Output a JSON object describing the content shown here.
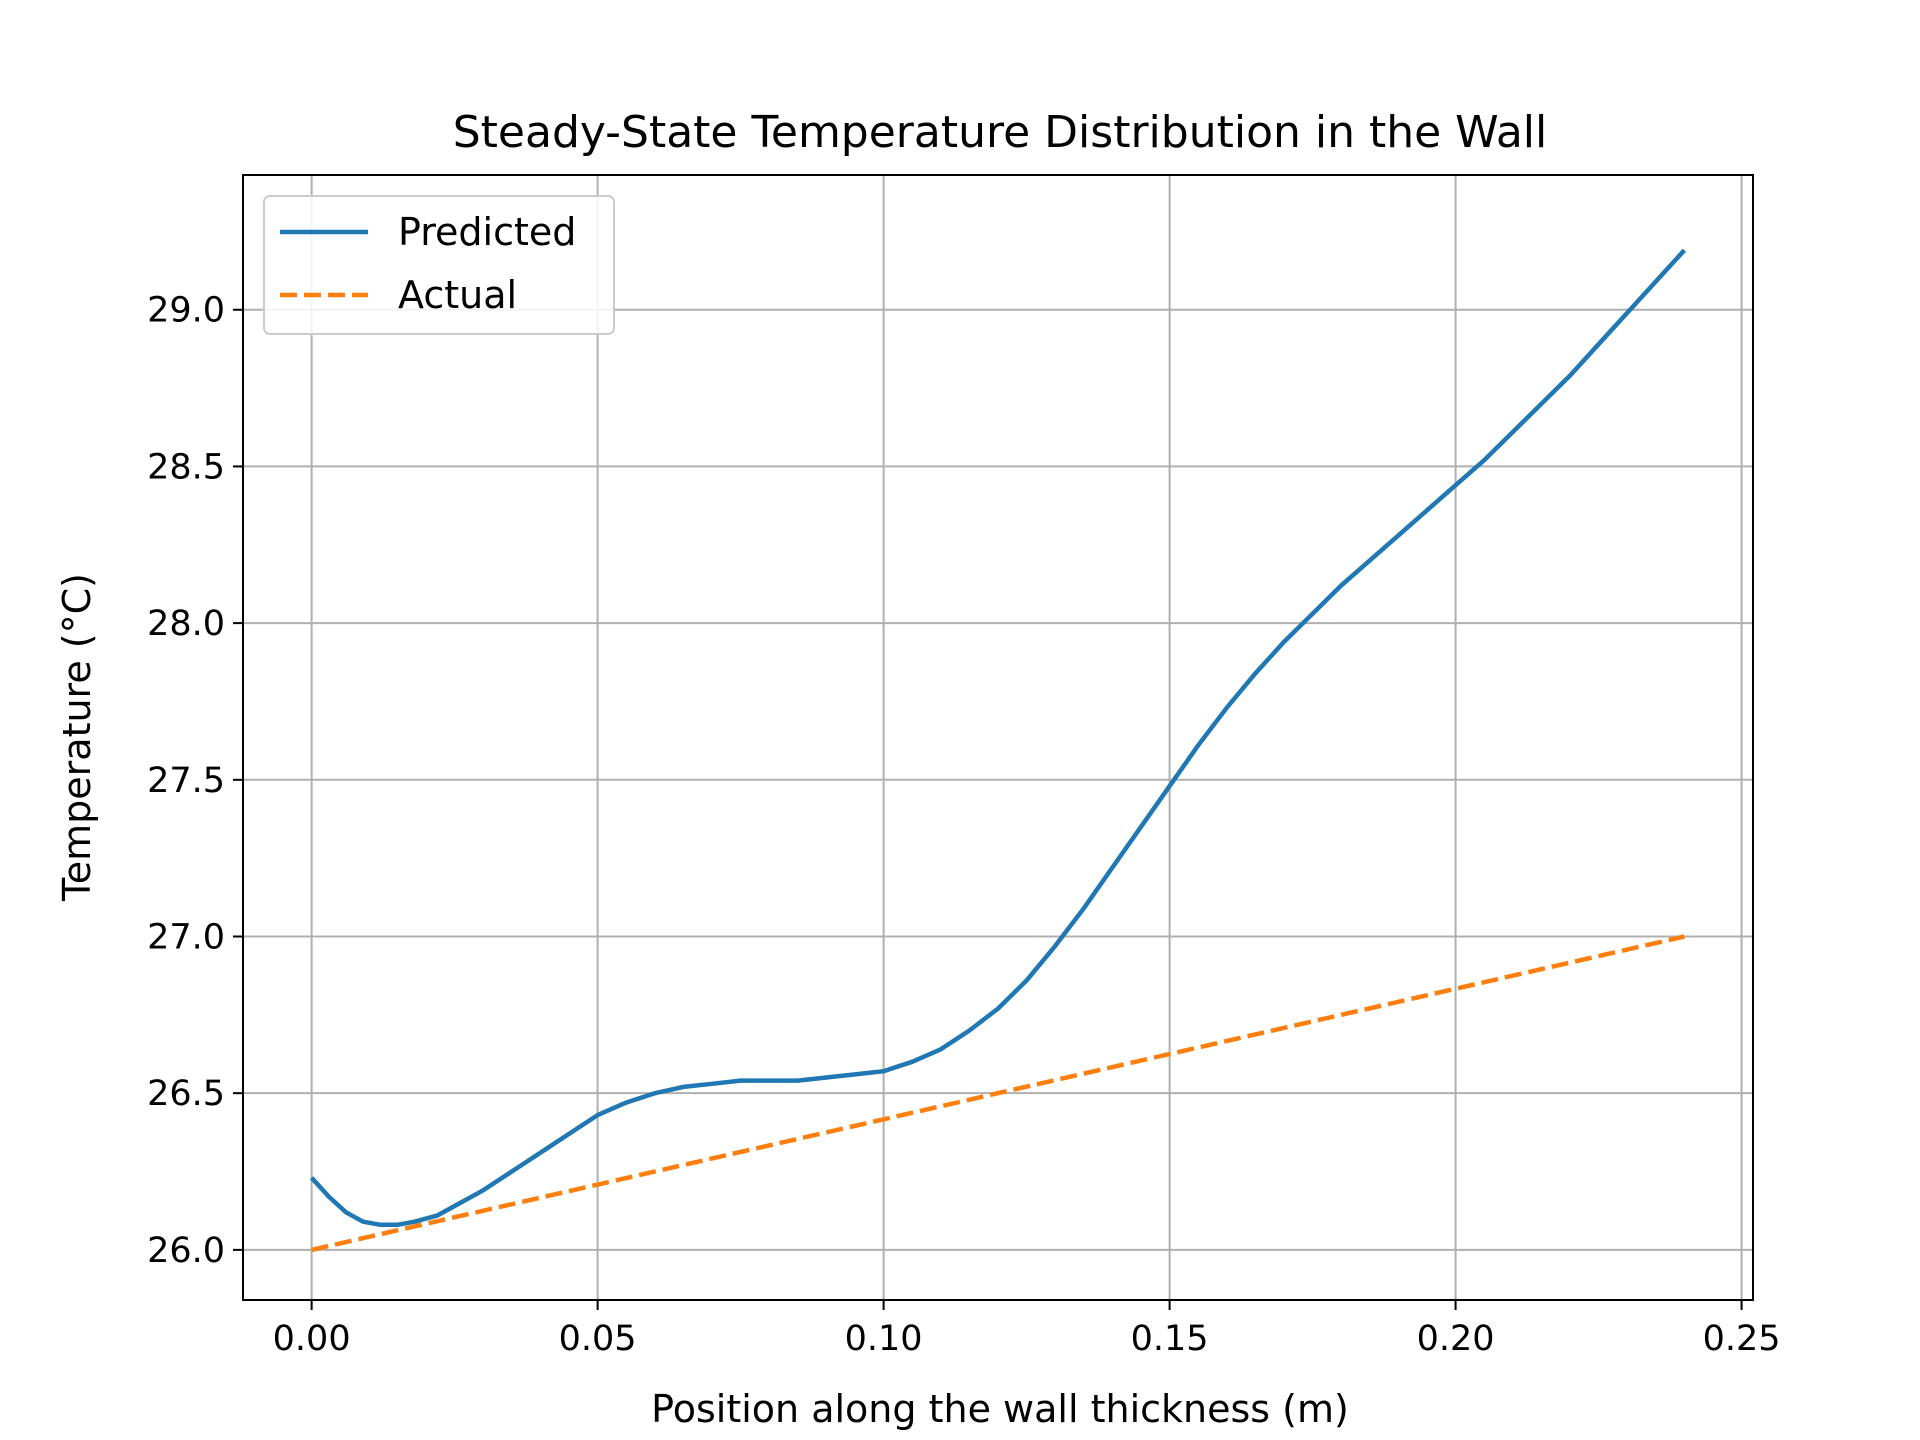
{
  "chart_data": {
    "type": "line",
    "title": "Steady-State Temperature Distribution in the Wall",
    "xlabel": "Position along the wall thickness (m)",
    "ylabel": "Temperature (°C)",
    "xlim": [
      -0.012,
      0.252
    ],
    "ylim": [
      25.84,
      29.43
    ],
    "xticks": [
      0.0,
      0.05,
      0.1,
      0.15,
      0.2,
      0.25
    ],
    "xtick_labels": [
      "0.00",
      "0.05",
      "0.10",
      "0.15",
      "0.20",
      "0.25"
    ],
    "yticks": [
      26.0,
      26.5,
      27.0,
      27.5,
      28.0,
      28.5,
      29.0
    ],
    "ytick_labels": [
      "26.0",
      "26.5",
      "27.0",
      "27.5",
      "28.0",
      "28.5",
      "29.0"
    ],
    "grid": true,
    "legend_position": "top-left",
    "series": [
      {
        "name": "Predicted",
        "color": "#1f77b4",
        "style": "solid",
        "x": [
          0.0,
          0.003,
          0.006,
          0.009,
          0.012,
          0.015,
          0.018,
          0.022,
          0.026,
          0.03,
          0.035,
          0.04,
          0.045,
          0.05,
          0.055,
          0.06,
          0.065,
          0.07,
          0.075,
          0.08,
          0.085,
          0.09,
          0.095,
          0.1,
          0.105,
          0.11,
          0.115,
          0.12,
          0.125,
          0.13,
          0.135,
          0.14,
          0.145,
          0.15,
          0.155,
          0.16,
          0.165,
          0.17,
          0.175,
          0.18,
          0.185,
          0.19,
          0.195,
          0.2,
          0.205,
          0.21,
          0.215,
          0.22,
          0.225,
          0.23,
          0.235,
          0.24
        ],
        "y": [
          26.23,
          26.17,
          26.12,
          26.09,
          26.08,
          26.08,
          26.09,
          26.11,
          26.15,
          26.19,
          26.25,
          26.31,
          26.37,
          26.43,
          26.47,
          26.5,
          26.52,
          26.53,
          26.54,
          26.54,
          26.54,
          26.55,
          26.56,
          26.57,
          26.6,
          26.64,
          26.7,
          26.77,
          26.86,
          26.97,
          27.09,
          27.22,
          27.35,
          27.48,
          27.61,
          27.73,
          27.84,
          27.94,
          28.03,
          28.12,
          28.2,
          28.28,
          28.36,
          28.44,
          28.52,
          28.61,
          28.7,
          28.79,
          28.89,
          28.99,
          29.09,
          29.19
        ]
      },
      {
        "name": "Actual",
        "color": "#ff7f0e",
        "style": "dashed",
        "x": [
          0.0,
          0.24
        ],
        "y": [
          26.0,
          27.0
        ]
      }
    ]
  }
}
